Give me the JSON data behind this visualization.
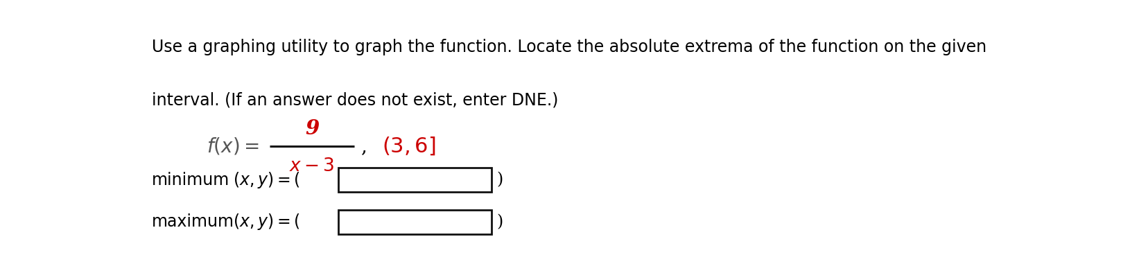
{
  "background_color": "#ffffff",
  "text_color": "#000000",
  "red_color": "#cc0000",
  "dark_color": "#333333",
  "main_text_line1": "Use a graphing utility to graph the function. Locate the absolute extrema of the function on the given",
  "main_text_line2": "interval. (If an answer does not exist, enter DNE.)",
  "label_minimum": "minimum",
  "label_maximum": "maximum",
  "font_size_main": 17,
  "font_size_formula": 19,
  "font_size_labels": 17,
  "fig_width": 16.3,
  "fig_height": 3.94,
  "dpi": 100
}
